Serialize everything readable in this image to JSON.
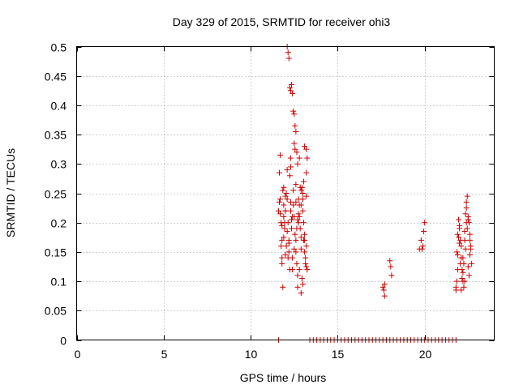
{
  "chart_data": {
    "type": "scatter",
    "title": "Day 329 of 2015, SRMTID for receiver ohi3",
    "xlabel": "GPS time / hours",
    "ylabel": "SRMTID / TECUs",
    "xlim": [
      0,
      24
    ],
    "ylim": [
      0,
      0.5
    ],
    "xticks": [
      0,
      5,
      10,
      15,
      20
    ],
    "xtick_labels": [
      "0",
      "5",
      "10",
      "15",
      "20"
    ],
    "yticks": [
      0,
      0.05,
      0.1,
      0.15,
      0.2,
      0.25,
      0.3,
      0.35,
      0.4,
      0.45,
      0.5
    ],
    "ytick_labels": [
      "0",
      "0.05",
      "0.1",
      "0.15",
      "0.2",
      "0.25",
      "0.3",
      "0.35",
      "0.4",
      "0.45",
      "0.5"
    ],
    "grid": true,
    "marker": "+",
    "color": "#cc0000",
    "series": [
      {
        "name": "SRMTID",
        "x": [
          11.6,
          11.65,
          11.7,
          11.7,
          11.75,
          11.8,
          11.8,
          11.85,
          11.9,
          11.9,
          11.95,
          12.0,
          12.0,
          12.05,
          12.1,
          12.1,
          12.15,
          12.2,
          12.2,
          12.25,
          12.3,
          12.3,
          12.35,
          12.4,
          12.4,
          12.45,
          12.5,
          12.5,
          12.55,
          12.6,
          12.6,
          12.65,
          12.7,
          12.7,
          12.75,
          12.8,
          12.8,
          12.85,
          12.9,
          12.9,
          12.95,
          13.0,
          13.0,
          13.05,
          13.1,
          13.1,
          13.15,
          13.2,
          13.2,
          13.25,
          11.7,
          11.8,
          11.9,
          12.0,
          12.1,
          12.2,
          12.3,
          12.4,
          12.5,
          12.6,
          12.7,
          12.8,
          12.9,
          13.0,
          13.1,
          13.2,
          11.75,
          11.85,
          11.95,
          12.05,
          12.15,
          12.25,
          12.35,
          12.45,
          12.55,
          12.65,
          12.75,
          12.85,
          12.95,
          13.05,
          13.15,
          13.25,
          12.1,
          12.15,
          12.2,
          12.25,
          12.3,
          12.35,
          12.4,
          12.45,
          12.5,
          12.55,
          12.6,
          12.65,
          12.7,
          12.8,
          12.9,
          13.0,
          13.1,
          13.2,
          11.65,
          11.8,
          11.9,
          12.0,
          12.3,
          12.6,
          12.75,
          12.9,
          13.05,
          13.2,
          17.6,
          17.65,
          17.7,
          17.7,
          18.0,
          18.05,
          18.1,
          19.7,
          19.8,
          19.85,
          19.9,
          19.95,
          20.0,
          21.8,
          21.85,
          21.9,
          21.95,
          22.0,
          22.05,
          22.1,
          22.15,
          22.2,
          22.25,
          22.3,
          22.35,
          22.4,
          22.45,
          22.5,
          22.55,
          22.6,
          22.65,
          21.8,
          21.9,
          22.0,
          22.1,
          22.2,
          22.3,
          22.4,
          22.5,
          22.6,
          22.7,
          21.85,
          21.95,
          22.05,
          22.15,
          22.25,
          22.35,
          22.45,
          22.55,
          22.65,
          21.9,
          22.0,
          22.1,
          22.2,
          22.3,
          22.4,
          22.5,
          22.6,
          11.6,
          13.4,
          13.6,
          13.8,
          14.0,
          14.2,
          14.4,
          14.6,
          14.8,
          15.0,
          15.2,
          15.4,
          15.6,
          15.8,
          16.0,
          16.2,
          16.4,
          16.6,
          16.8,
          17.0,
          17.2,
          17.4,
          17.6,
          17.8,
          18.0,
          18.2,
          18.4,
          18.6,
          18.8,
          19.0,
          19.2,
          19.4,
          19.6,
          19.8,
          20.0,
          20.2,
          20.4,
          20.6,
          20.8,
          21.0,
          21.2,
          21.4,
          21.6,
          21.8
        ],
        "y": [
          0.22,
          0.285,
          0.24,
          0.215,
          0.2,
          0.17,
          0.14,
          0.255,
          0.23,
          0.21,
          0.19,
          0.22,
          0.245,
          0.16,
          0.29,
          0.24,
          0.2,
          0.17,
          0.15,
          0.28,
          0.31,
          0.22,
          0.19,
          0.14,
          0.12,
          0.255,
          0.335,
          0.21,
          0.18,
          0.17,
          0.15,
          0.13,
          0.11,
          0.09,
          0.24,
          0.23,
          0.21,
          0.19,
          0.175,
          0.155,
          0.26,
          0.25,
          0.22,
          0.2,
          0.17,
          0.15,
          0.13,
          0.125,
          0.285,
          0.31,
          0.315,
          0.13,
          0.26,
          0.22,
          0.185,
          0.165,
          0.295,
          0.21,
          0.155,
          0.235,
          0.205,
          0.12,
          0.23,
          0.24,
          0.18,
          0.16,
          0.16,
          0.09,
          0.2,
          0.25,
          0.14,
          0.12,
          0.205,
          0.23,
          0.325,
          0.19,
          0.2,
          0.26,
          0.105,
          0.27,
          0.14,
          0.12,
          0.5,
          0.49,
          0.48,
          0.43,
          0.425,
          0.435,
          0.42,
          0.39,
          0.385,
          0.365,
          0.355,
          0.32,
          0.3,
          0.31,
          0.08,
          0.095,
          0.33,
          0.325,
          0.235,
          0.195,
          0.175,
          0.145,
          0.235,
          0.265,
          0.215,
          0.255,
          0.17,
          0.245,
          0.09,
          0.085,
          0.095,
          0.075,
          0.135,
          0.125,
          0.11,
          0.155,
          0.17,
          0.155,
          0.16,
          0.185,
          0.2,
          0.09,
          0.15,
          0.18,
          0.205,
          0.19,
          0.17,
          0.16,
          0.12,
          0.14,
          0.13,
          0.1,
          0.215,
          0.235,
          0.245,
          0.21,
          0.2,
          0.17,
          0.155,
          0.085,
          0.12,
          0.165,
          0.14,
          0.115,
          0.185,
          0.225,
          0.205,
          0.145,
          0.13,
          0.1,
          0.175,
          0.13,
          0.105,
          0.09,
          0.155,
          0.19,
          0.11,
          0.16,
          0.145,
          0.195,
          0.085,
          0.1,
          0.17,
          0.2,
          0.125,
          0.18,
          0.0,
          0.0,
          0.0,
          0.0,
          0.0,
          0.0,
          0.0,
          0.0,
          0.0,
          0.0,
          0.0,
          0.0,
          0.0,
          0.0,
          0.0,
          0.0,
          0.0,
          0.0,
          0.0,
          0.0,
          0.0,
          0.0,
          0.0,
          0.0,
          0.0,
          0.0,
          0.0,
          0.0,
          0.0,
          0.0,
          0.0,
          0.0,
          0.0,
          0.0,
          0.0,
          0.0,
          0.0,
          0.0,
          0.0,
          0.0,
          0.0,
          0.0,
          0.0,
          0.0
        ]
      }
    ]
  }
}
